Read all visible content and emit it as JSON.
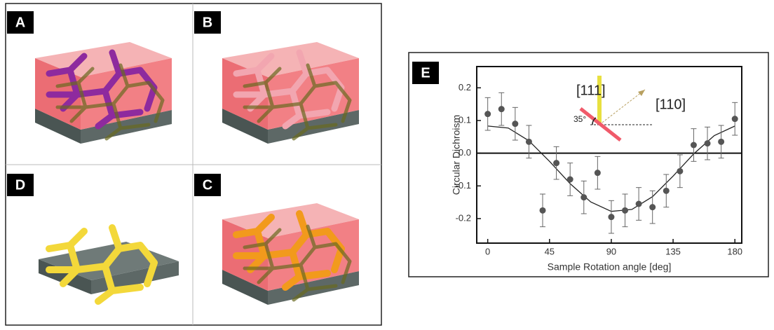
{
  "panels": {
    "a": "A",
    "b": "B",
    "d": "D",
    "c": "C",
    "e": "E"
  },
  "chart_data": {
    "type": "scatter",
    "x_label": "Sample Rotation angle [deg]",
    "y_label": "Circular Dichroism",
    "annotations": [
      "[111]",
      "[110]",
      "35°"
    ],
    "x": [
      0,
      10,
      20,
      30,
      40,
      50,
      60,
      70,
      80,
      90,
      100,
      110,
      120,
      130,
      140,
      150,
      160,
      170,
      180
    ],
    "values": [
      0.12,
      0.135,
      0.09,
      0.035,
      -0.175,
      -0.03,
      -0.08,
      -0.135,
      -0.06,
      -0.195,
      -0.175,
      -0.155,
      -0.165,
      -0.115,
      -0.055,
      0.025,
      0.03,
      0.035,
      0.105
    ],
    "errors": [
      0.05,
      0.05,
      0.05,
      0.05,
      0.05,
      0.05,
      0.05,
      0.05,
      0.05,
      0.05,
      0.05,
      0.05,
      0.05,
      0.05,
      0.05,
      0.05,
      0.05,
      0.05,
      0.05
    ],
    "fit": {
      "x": [
        0,
        15,
        30,
        45,
        60,
        75,
        90,
        105,
        120,
        135,
        150,
        165,
        180
      ],
      "values": [
        0.083,
        0.077,
        0.038,
        -0.025,
        -0.093,
        -0.149,
        -0.178,
        -0.172,
        -0.133,
        -0.07,
        -0.002,
        0.054,
        0.083
      ]
    },
    "color": "#555555",
    "xlim": [
      -8,
      185
    ],
    "ylim": [
      -0.275,
      0.265
    ],
    "xticks": [
      0,
      45,
      90,
      135,
      180
    ],
    "yticks": [
      -0.2,
      -0.1,
      {
        "value": 0,
        "label": "0.0"
      },
      0.1,
      0.2
    ],
    "zero_line": true
  }
}
